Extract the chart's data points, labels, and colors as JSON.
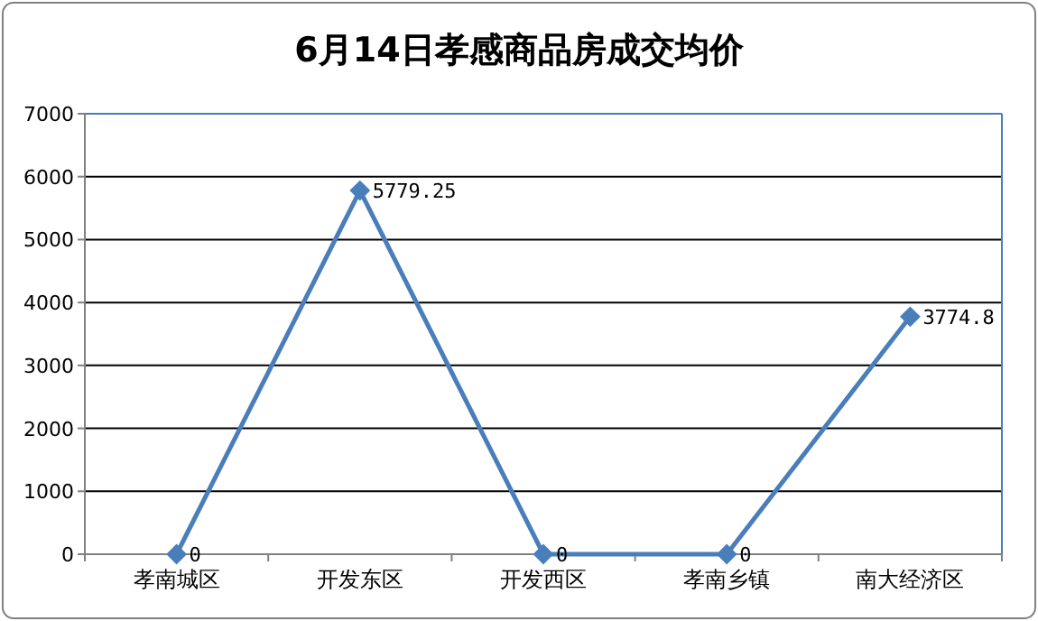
{
  "chart_data": {
    "type": "line",
    "title": "6月14日孝感商品房成交均价",
    "categories": [
      "孝南城区",
      "开发东区",
      "开发西区",
      "孝南乡镇",
      "南大经济区"
    ],
    "values": [
      0,
      5779.25,
      0,
      0,
      3774.8
    ],
    "color": "#4a7ebb",
    "marker": "diamond",
    "line_style": "solid",
    "ylim": [
      0,
      7000
    ],
    "yticks": [
      0,
      1000,
      2000,
      3000,
      4000,
      5000,
      6000,
      7000
    ],
    "grid": "y",
    "data_labels": true
  }
}
